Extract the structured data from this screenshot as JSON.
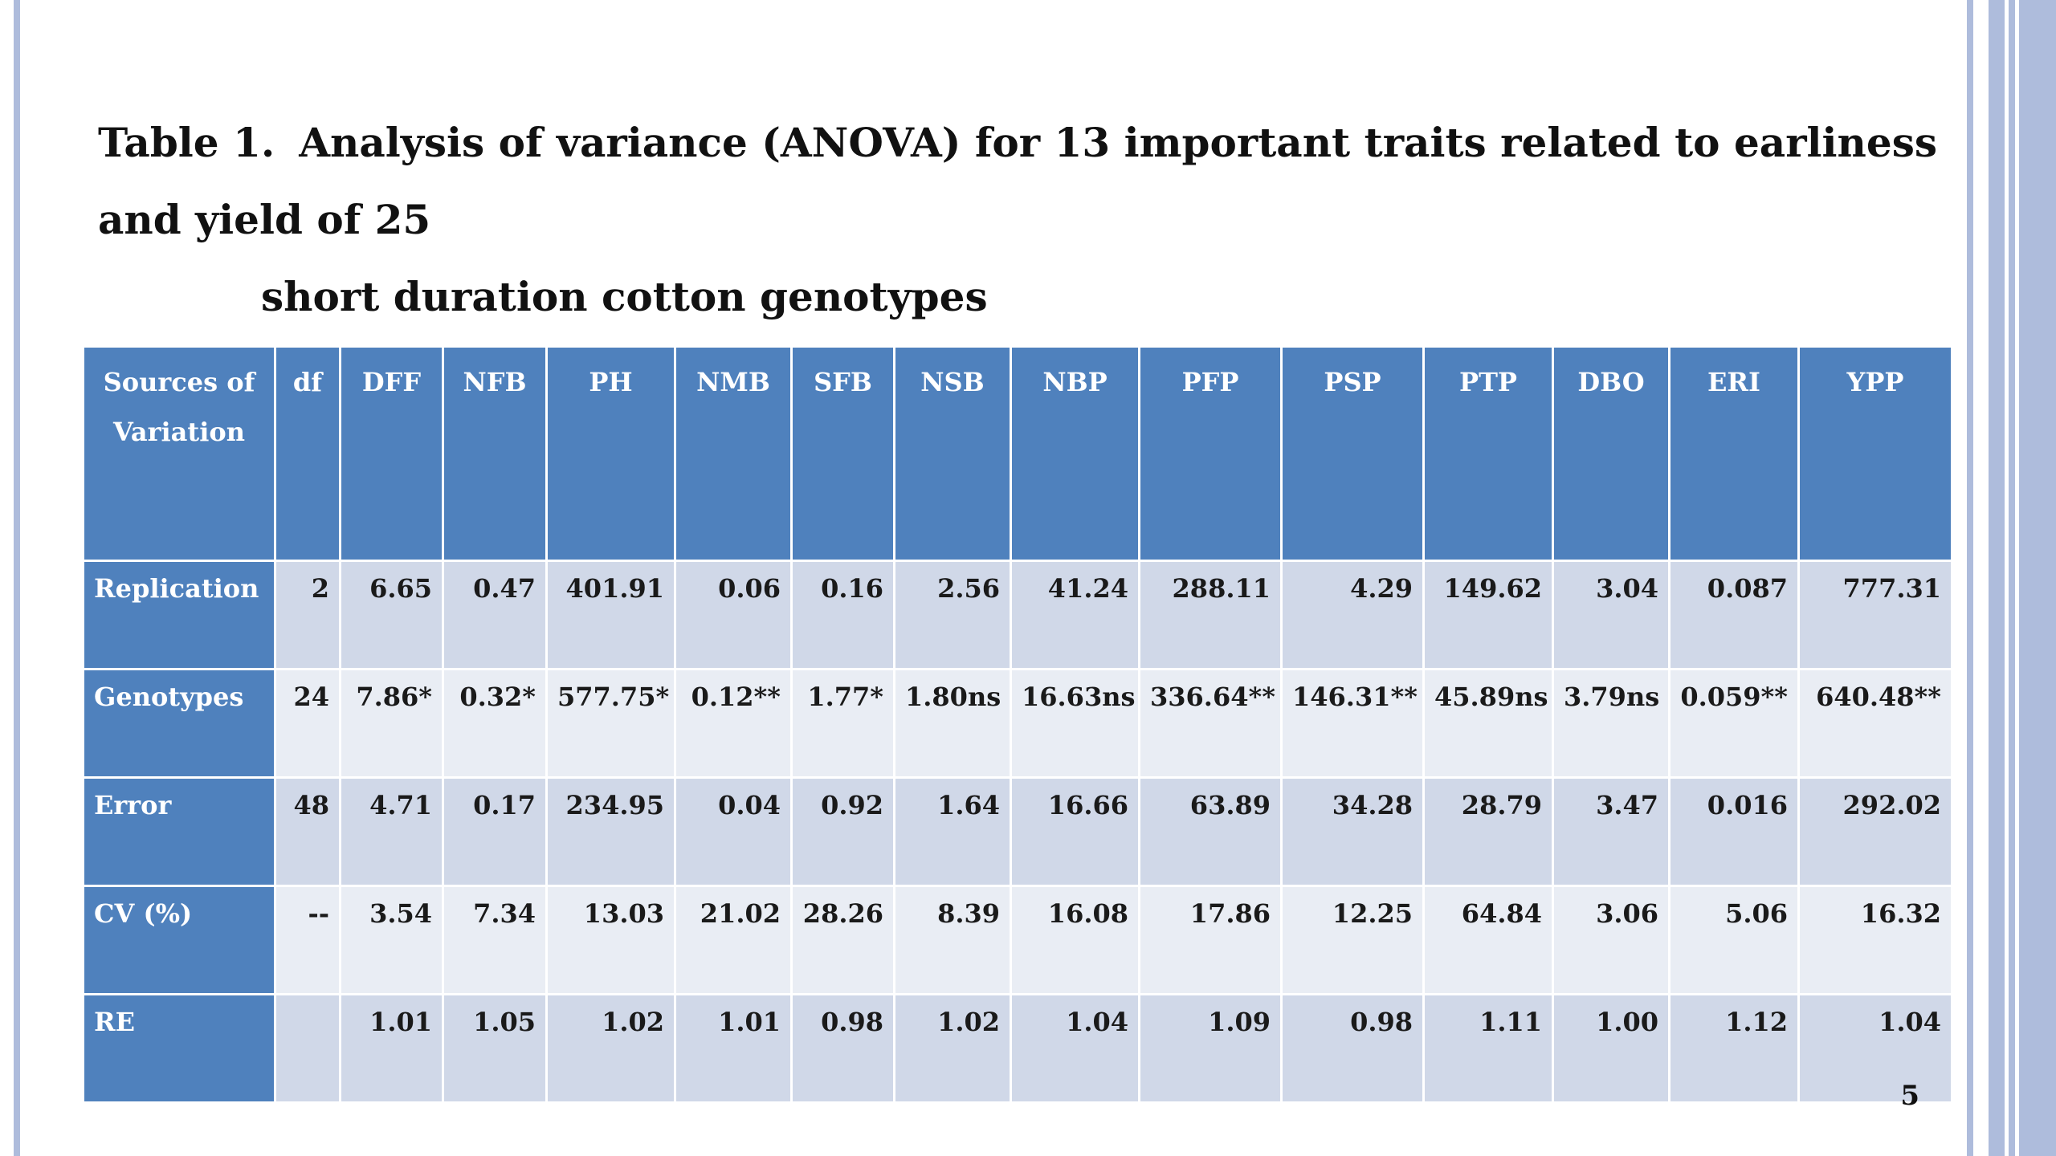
{
  "title": {
    "label": "Table 1.",
    "line1": "Analysis of variance (ANOVA) for 13 important traits related to earliness and yield of 25",
    "line2": "short duration cotton genotypes"
  },
  "table": {
    "headers": [
      "Sources of Variation",
      "df",
      "DFF",
      "NFB",
      "PH",
      "NMB",
      "SFB",
      "NSB",
      "NBP",
      "PFP",
      "PSP",
      "PTP",
      "DBO",
      "ERI",
      "YPP"
    ],
    "rows": [
      {
        "source": "Replication",
        "cells": [
          "2",
          "6.65",
          "0.47",
          "401.91",
          "0.06",
          "0.16",
          "2.56",
          "41.24",
          "288.11",
          "4.29",
          "149.62",
          "3.04",
          "0.087",
          "777.31"
        ]
      },
      {
        "source": "Genotypes",
        "cells": [
          "24",
          "7.86*",
          "0.32*",
          "577.75*",
          "0.12**",
          "1.77*",
          "1.80ns",
          "16.63ns",
          "336.64**",
          "146.31**",
          "45.89ns",
          "3.79ns",
          "0.059**",
          "640.48**"
        ]
      },
      {
        "source": "Error",
        "cells": [
          "48",
          "4.71",
          "0.17",
          "234.95",
          "0.04",
          "0.92",
          "1.64",
          "16.66",
          "63.89",
          "34.28",
          "28.79",
          "3.47",
          "0.016",
          "292.02"
        ]
      },
      {
        "source": "CV (%)",
        "cells": [
          "--",
          "3.54",
          "7.34",
          "13.03",
          "21.02",
          "28.26",
          "8.39",
          "16.08",
          "17.86",
          "12.25",
          "64.84",
          "3.06",
          "5.06",
          "16.32"
        ]
      },
      {
        "source": "RE",
        "cells": [
          "",
          "1.01",
          "1.05",
          "1.02",
          "1.01",
          "0.98",
          "1.02",
          "1.04",
          "1.09",
          "0.98",
          "1.11",
          "1.00",
          "1.12",
          "1.04"
        ]
      }
    ]
  },
  "page_number": "5",
  "colors": {
    "header": "#4f81bd",
    "row_odd": "#d0d8e8",
    "row_even": "#e9edf4",
    "border": "#aebcdc"
  }
}
